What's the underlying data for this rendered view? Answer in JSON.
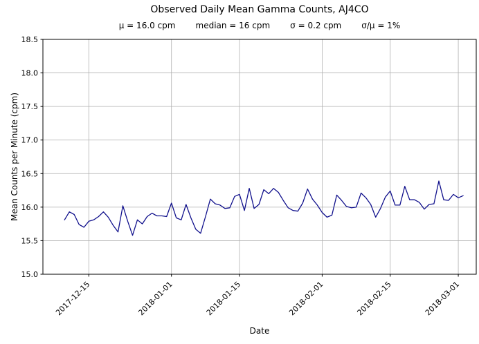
{
  "chart_data": {
    "type": "line",
    "title": "Observed Daily Mean Gamma Counts, AJ4CO",
    "stats_line": [
      "μ = 16.0 cpm",
      "median = 16 cpm",
      "σ = 0.2 cpm",
      "σ/μ = 1%"
    ],
    "xlabel": "Date",
    "ylabel": "Mean Counts per Minute (cpm)",
    "grid": true,
    "legend_position": "none",
    "line_color": "#10108c",
    "grid_color": "#b0b0b0",
    "axis_color": "#000000",
    "ylim": [
      15.0,
      18.5
    ],
    "yticks": [
      15.0,
      15.5,
      16.0,
      16.5,
      17.0,
      17.5,
      18.0,
      18.5
    ],
    "xtick_dates": [
      "2017-12-15",
      "2018-01-01",
      "2018-01-15",
      "2018-02-01",
      "2018-02-15",
      "2018-03-01"
    ],
    "x_dates": [
      "2017-12-10",
      "2017-12-11",
      "2017-12-12",
      "2017-12-13",
      "2017-12-14",
      "2017-12-15",
      "2017-12-16",
      "2017-12-17",
      "2017-12-18",
      "2017-12-19",
      "2017-12-20",
      "2017-12-21",
      "2017-12-22",
      "2017-12-23",
      "2017-12-24",
      "2017-12-25",
      "2017-12-26",
      "2017-12-27",
      "2017-12-28",
      "2017-12-29",
      "2017-12-30",
      "2017-12-31",
      "2018-01-01",
      "2018-01-02",
      "2018-01-03",
      "2018-01-04",
      "2018-01-05",
      "2018-01-06",
      "2018-01-07",
      "2018-01-08",
      "2018-01-09",
      "2018-01-10",
      "2018-01-11",
      "2018-01-12",
      "2018-01-13",
      "2018-01-14",
      "2018-01-15",
      "2018-01-16",
      "2018-01-17",
      "2018-01-18",
      "2018-01-19",
      "2018-01-20",
      "2018-01-21",
      "2018-01-22",
      "2018-01-23",
      "2018-01-24",
      "2018-01-25",
      "2018-01-26",
      "2018-01-27",
      "2018-01-28",
      "2018-01-29",
      "2018-01-30",
      "2018-01-31",
      "2018-02-01",
      "2018-02-02",
      "2018-02-03",
      "2018-02-04",
      "2018-02-05",
      "2018-02-06",
      "2018-02-07",
      "2018-02-08",
      "2018-02-09",
      "2018-02-10",
      "2018-02-11",
      "2018-02-12",
      "2018-02-13",
      "2018-02-14",
      "2018-02-15",
      "2018-02-16",
      "2018-02-17",
      "2018-02-18",
      "2018-02-19",
      "2018-02-20",
      "2018-02-21",
      "2018-02-22",
      "2018-02-23",
      "2018-02-24",
      "2018-02-25",
      "2018-02-26",
      "2018-02-27",
      "2018-02-28",
      "2018-03-01",
      "2018-03-02"
    ],
    "values": [
      15.81,
      15.93,
      15.89,
      15.74,
      15.7,
      15.79,
      15.81,
      15.86,
      15.93,
      15.85,
      15.73,
      15.63,
      16.02,
      15.79,
      15.58,
      15.81,
      15.75,
      15.86,
      15.91,
      15.87,
      15.87,
      15.86,
      16.06,
      15.84,
      15.81,
      16.04,
      15.84,
      15.67,
      15.61,
      15.86,
      16.12,
      16.05,
      16.03,
      15.98,
      15.99,
      16.16,
      16.19,
      15.95,
      16.28,
      15.98,
      16.04,
      16.26,
      16.2,
      16.28,
      16.22,
      16.1,
      15.99,
      15.95,
      15.94,
      16.06,
      16.27,
      16.12,
      16.03,
      15.92,
      15.85,
      15.88,
      16.18,
      16.1,
      16.01,
      15.99,
      16.0,
      16.21,
      16.14,
      16.04,
      15.85,
      15.98,
      16.15,
      16.24,
      16.03,
      16.03,
      16.31,
      16.11,
      16.11,
      16.07,
      15.97,
      16.04,
      16.05,
      16.39,
      16.11,
      16.1,
      16.19,
      16.14,
      16.17
    ]
  }
}
